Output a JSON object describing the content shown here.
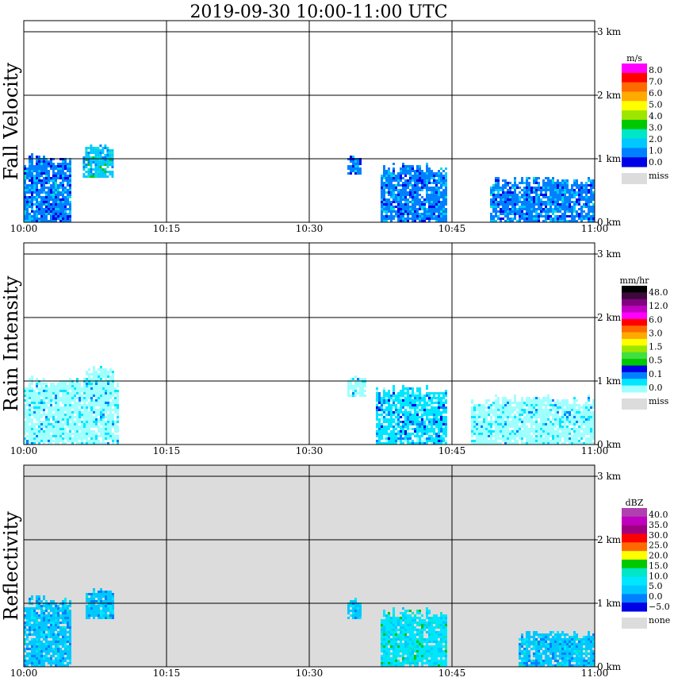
{
  "title": "2019-09-30   10:00-11:00 UTC",
  "x_ticks": [
    "10:00",
    "10:15",
    "10:30",
    "10:45",
    "11:00"
  ],
  "y_ticks": [
    "0 km",
    "1 km",
    "2 km",
    "3 km"
  ],
  "panels": [
    {
      "ylabel": "Fall Velocity",
      "legend": {
        "unit": "m/s",
        "labels": [
          "8.0",
          "7.0",
          "6.0",
          "5.0",
          "4.0",
          "3.0",
          "2.0",
          "1.0",
          "0.0"
        ],
        "colors": [
          "#ff00ff",
          "#ff0000",
          "#ff6a00",
          "#ffaa00",
          "#ffff00",
          "#9ee600",
          "#00c800",
          "#00e6c8",
          "#00c8ff",
          "#0080ff",
          "#0000e6"
        ],
        "miss_label": "miss",
        "miss_color": "#dcdcdc"
      },
      "background": "#ffffff"
    },
    {
      "ylabel": "Rain Intensity",
      "legend": {
        "unit": "mm/hr",
        "labels": [
          "48.0",
          "12.0",
          "6.0",
          "3.0",
          "1.5",
          "0.5",
          "0.1",
          "0.0"
        ],
        "colors": [
          "#000000",
          "#3c0a3c",
          "#800080",
          "#c000c0",
          "#ff00ff",
          "#ff0000",
          "#ff6a00",
          "#ffaa00",
          "#ffff00",
          "#9ee600",
          "#40e040",
          "#00c800",
          "#0000e6",
          "#0080ff",
          "#00e6ff",
          "#a0ffff"
        ],
        "miss_label": "miss",
        "miss_color": "#dcdcdc"
      },
      "background": "#ffffff"
    },
    {
      "ylabel": "Reflectivity",
      "legend": {
        "unit": "dBZ",
        "labels": [
          "40.0",
          "35.0",
          "30.0",
          "25.0",
          "20.0",
          "15.0",
          "10.0",
          "5.0",
          "0.0",
          "−5.0"
        ],
        "colors": [
          "#b040b0",
          "#c000c0",
          "#a00080",
          "#ff0000",
          "#ff6a00",
          "#ffff00",
          "#00c800",
          "#00e6c8",
          "#00e6ff",
          "#00c8ff",
          "#0080ff",
          "#0000e6"
        ],
        "miss_label": "none",
        "miss_color": "#dcdcdc"
      },
      "background": "#dcdcdc"
    }
  ],
  "chart_data": {
    "type": "heatmap",
    "title": "2019-09-30   10:00-11:00 UTC",
    "xlabel": "",
    "x_range": [
      "10:00",
      "11:00"
    ],
    "y_range_km": [
      0,
      3.2
    ],
    "y_unit": "km",
    "grid": true,
    "panels": [
      {
        "name": "Fall Velocity",
        "unit": "m/s",
        "echoes": [
          {
            "t_start_min": 0.0,
            "t_end_min": 5.0,
            "z_bottom_km": 0.0,
            "z_top_km": 1.1,
            "level": 1
          },
          {
            "t_start_min": 6.2,
            "t_end_min": 9.3,
            "z_bottom_km": 0.7,
            "z_top_km": 1.25,
            "level": 2
          },
          {
            "t_start_min": 34.0,
            "t_end_min": 35.5,
            "z_bottom_km": 0.75,
            "z_top_km": 1.1,
            "level": 1
          },
          {
            "t_start_min": 37.5,
            "t_end_min": 44.5,
            "z_bottom_km": 0.0,
            "z_top_km": 0.95,
            "level": 1
          },
          {
            "t_start_min": 49.0,
            "t_end_min": 60.0,
            "z_bottom_km": 0.0,
            "z_top_km": 0.75,
            "level": 1
          }
        ]
      },
      {
        "name": "Rain Intensity",
        "unit": "mm/hr",
        "echoes": [
          {
            "t_start_min": 0.0,
            "t_end_min": 10.0,
            "z_bottom_km": 0.0,
            "z_top_km": 1.1,
            "level": 0
          },
          {
            "t_start_min": 6.5,
            "t_end_min": 9.3,
            "z_bottom_km": 0.75,
            "z_top_km": 1.25,
            "level": 0
          },
          {
            "t_start_min": 34.0,
            "t_end_min": 36.0,
            "z_bottom_km": 0.75,
            "z_top_km": 1.1,
            "level": 0
          },
          {
            "t_start_min": 37.0,
            "t_end_min": 44.5,
            "z_bottom_km": 0.0,
            "z_top_km": 0.95,
            "level": 1
          },
          {
            "t_start_min": 47.0,
            "t_end_min": 60.0,
            "z_bottom_km": 0.0,
            "z_top_km": 0.8,
            "level": 0
          }
        ]
      },
      {
        "name": "Reflectivity",
        "unit": "dBZ",
        "echoes": [
          {
            "t_start_min": 0.0,
            "t_end_min": 5.0,
            "z_bottom_km": 0.0,
            "z_top_km": 1.15,
            "level": 2
          },
          {
            "t_start_min": 6.5,
            "t_end_min": 9.3,
            "z_bottom_km": 0.75,
            "z_top_km": 1.25,
            "level": 2
          },
          {
            "t_start_min": 34.0,
            "t_end_min": 35.5,
            "z_bottom_km": 0.75,
            "z_top_km": 1.1,
            "level": 2
          },
          {
            "t_start_min": 37.5,
            "t_end_min": 44.5,
            "z_bottom_km": 0.0,
            "z_top_km": 0.95,
            "level": 3
          },
          {
            "t_start_min": 52.0,
            "t_end_min": 60.0,
            "z_bottom_km": 0.0,
            "z_top_km": 0.6,
            "level": 2
          }
        ]
      }
    ]
  }
}
